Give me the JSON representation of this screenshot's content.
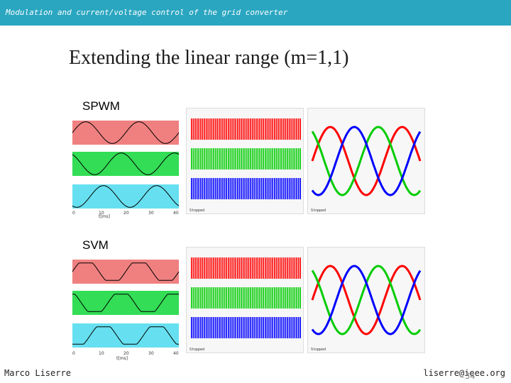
{
  "header": {
    "title": "Modulation and current/voltage control of the grid converter"
  },
  "slide": {
    "title": "Extending the linear range (m=1,1)"
  },
  "sections": [
    {
      "label": "SPWM"
    },
    {
      "label": "SVM"
    }
  ],
  "footer": {
    "author": "Marco Liserre",
    "email": "liserre@ieee.org",
    "page": "34"
  },
  "colors": {
    "header": "#2aa6c0",
    "red": "#ff0000",
    "green": "#00cc00",
    "blue": "#0000ff",
    "pink_band": "#f08080",
    "green_band": "#33dd55",
    "cyan_band": "#66e0f0"
  },
  "sim_plot": {
    "x_axis_label": "t[ms]",
    "x_ticks": [
      "0",
      "10",
      "20",
      "30",
      "40"
    ]
  },
  "scope": {
    "trigger_label": "Stopped"
  }
}
